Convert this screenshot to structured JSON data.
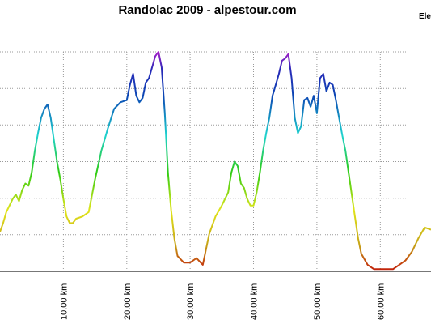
{
  "chart_data": {
    "type": "line",
    "title": "Randolac 2009 - alpestour.com",
    "legend": [
      {
        "label": "Ele",
        "placement": "top-right"
      }
    ],
    "xlabel": "",
    "ylabel": "",
    "x_unit": "km",
    "xlim": [
      0,
      68
    ],
    "x_ticks": [
      10,
      20,
      30,
      40,
      50,
      60
    ],
    "x_tick_labels": [
      "10.00 km",
      "20.00 km",
      "30.00 km",
      "40.00 km",
      "50.00 km",
      "60.00 km"
    ],
    "y_gridlines": 6,
    "grid": true,
    "color_scale": "elevation (low red → yellow → green → cyan → blue → purple high)",
    "series": [
      {
        "x": [
          0,
          0.5,
          1,
          1.5,
          2,
          2.5,
          3,
          3.5,
          4,
          4.5,
          5,
          5.5,
          6,
          6.5,
          7,
          7.5,
          8,
          8.5,
          9,
          9.5,
          10,
          10.5,
          11,
          11.5,
          12,
          13,
          14,
          15,
          16,
          17,
          18,
          19,
          20,
          20.5,
          21,
          21.5,
          22,
          22.5,
          23,
          23.5,
          24,
          24.5,
          25,
          25.5,
          26,
          26.5,
          27,
          27.5,
          28,
          29,
          30,
          31,
          32,
          33,
          34,
          35,
          36,
          36.5,
          37,
          37.5,
          38,
          38.5,
          39,
          39.5,
          40,
          40.5,
          41,
          41.5,
          42,
          42.5,
          43,
          43.5,
          44,
          44.5,
          45,
          45.5,
          46,
          46.5,
          47,
          47.5,
          48,
          48.5,
          49,
          49.5,
          50,
          50.5,
          51,
          51.5,
          52,
          52.5,
          53,
          53.5,
          54,
          54.5,
          55,
          55.5,
          56,
          56.5,
          57,
          58,
          59,
          60,
          61,
          62,
          63,
          64,
          65,
          66,
          67,
          68
        ],
        "y": [
          0.18,
          0.22,
          0.27,
          0.3,
          0.33,
          0.35,
          0.32,
          0.37,
          0.4,
          0.39,
          0.45,
          0.55,
          0.63,
          0.7,
          0.74,
          0.76,
          0.7,
          0.6,
          0.5,
          0.42,
          0.33,
          0.25,
          0.22,
          0.22,
          0.24,
          0.25,
          0.27,
          0.42,
          0.55,
          0.65,
          0.74,
          0.77,
          0.78,
          0.85,
          0.9,
          0.8,
          0.77,
          0.79,
          0.86,
          0.88,
          0.93,
          0.98,
          1.0,
          0.93,
          0.72,
          0.45,
          0.28,
          0.15,
          0.07,
          0.04,
          0.04,
          0.06,
          0.03,
          0.17,
          0.25,
          0.3,
          0.36,
          0.45,
          0.5,
          0.48,
          0.4,
          0.38,
          0.33,
          0.3,
          0.3,
          0.36,
          0.45,
          0.55,
          0.63,
          0.7,
          0.8,
          0.85,
          0.9,
          0.96,
          0.97,
          0.99,
          0.88,
          0.7,
          0.63,
          0.66,
          0.78,
          0.79,
          0.75,
          0.8,
          0.72,
          0.88,
          0.9,
          0.82,
          0.86,
          0.85,
          0.78,
          0.7,
          0.62,
          0.55,
          0.45,
          0.35,
          0.25,
          0.15,
          0.08,
          0.03,
          0.01,
          0.01,
          0.01,
          0.01,
          0.03,
          0.05,
          0.09,
          0.15,
          0.2,
          0.19
        ]
      }
    ]
  }
}
